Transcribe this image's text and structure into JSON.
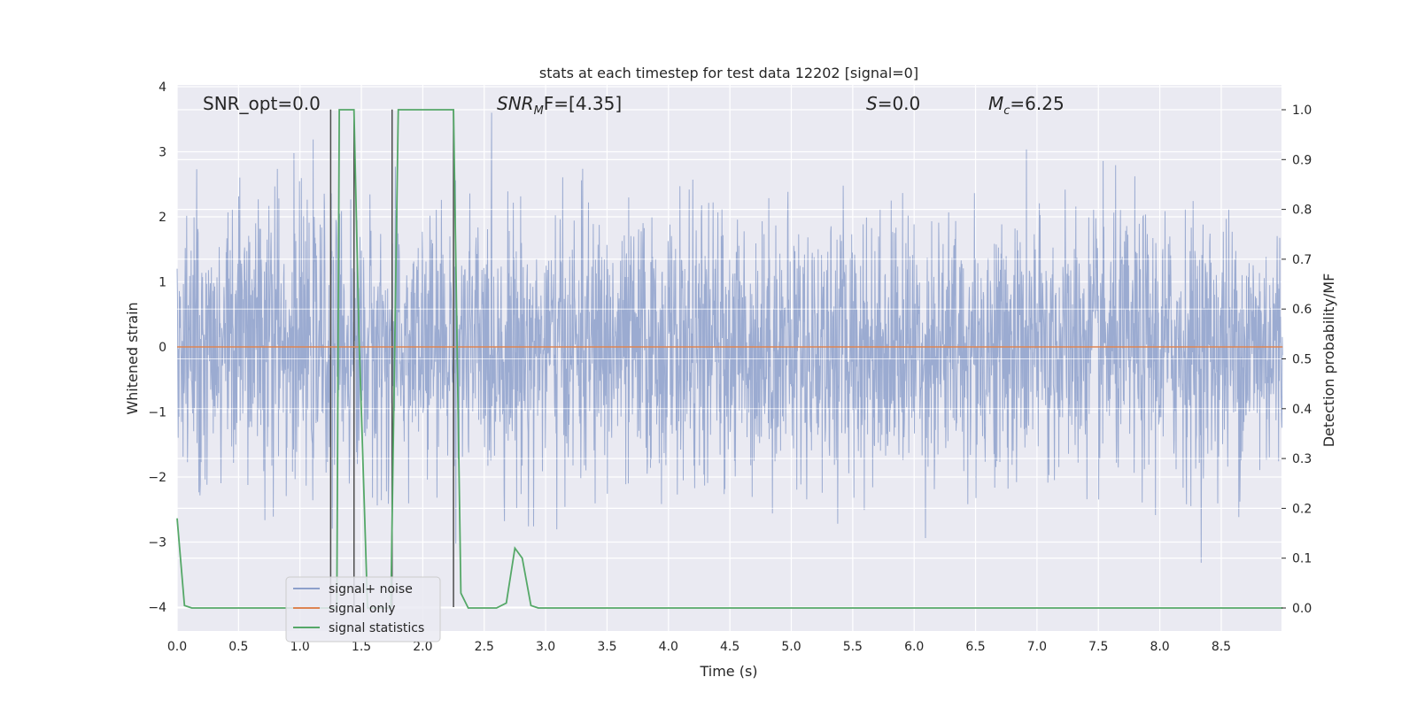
{
  "chart_data": {
    "type": "line",
    "title": "stats at each timestep for test data 12202 [signal=0]",
    "xlabel": "Time (s)",
    "ylabel": "Whitened strain",
    "y2label": "Detection probability/MF",
    "xlim": [
      0.0,
      9.0
    ],
    "ylim": [
      -4.35,
      4.05
    ],
    "y2lim": [
      -0.05,
      1.04
    ],
    "xticks": [
      "0.0",
      "0.5",
      "1.0",
      "1.5",
      "2.0",
      "2.5",
      "3.0",
      "3.5",
      "4.0",
      "4.5",
      "5.0",
      "5.5",
      "6.0",
      "6.5",
      "7.0",
      "7.5",
      "8.0",
      "8.5"
    ],
    "yticks": [
      "4",
      "3",
      "2",
      "1",
      "0",
      "−1",
      "−2",
      "−3",
      "−4"
    ],
    "y2ticks": [
      "1.0",
      "0.9",
      "0.8",
      "0.7",
      "0.6",
      "0.5",
      "0.4",
      "0.3",
      "0.2",
      "0.1",
      "0.0"
    ],
    "grid": true,
    "legend_position": "lower-left",
    "annotations": {
      "snr_opt": "SNR_opt=0.0",
      "snr_mf_main": "SNR",
      "snr_mf_sub": "M",
      "snr_mf_rest": "F=[4.35]",
      "s_main": "S",
      "s_rest": "=0.0",
      "mc_main": "M",
      "mc_sub": "c",
      "mc_rest": "=6.25"
    },
    "series": [
      {
        "name": "signal+ noise",
        "color": "#8da0cb",
        "kind": "noise",
        "noise_std": 1.0,
        "noise_range": [
          -4.0,
          3.6
        ],
        "x_range": [
          0.0,
          9.0
        ]
      },
      {
        "name": "signal only",
        "color": "#dd8452",
        "x": [
          0.0,
          9.0
        ],
        "y": [
          0.0,
          0.0
        ]
      },
      {
        "name": "signal statistics",
        "color": "#55a868",
        "axis": "right",
        "x": [
          0.0,
          0.06,
          0.12,
          0.25,
          1.0,
          1.25,
          1.3,
          1.32,
          1.44,
          1.48,
          1.55,
          1.62,
          1.74,
          1.8,
          2.0,
          2.25,
          2.31,
          2.37,
          2.6,
          2.68,
          2.75,
          2.81,
          2.88,
          2.94,
          9.0
        ],
        "y": [
          0.18,
          0.005,
          0.0,
          0.0,
          0.0,
          0.0,
          0.0,
          1.0,
          1.0,
          0.55,
          0.0,
          0.0,
          0.0,
          1.0,
          1.0,
          1.0,
          0.03,
          0.0,
          0.0,
          0.01,
          0.12,
          0.1,
          0.005,
          0.0,
          0.0
        ]
      }
    ],
    "vertical_lines": [
      1.25,
      1.44,
      1.75,
      2.25
    ],
    "vertical_lines_range": [
      -4.0,
      3.65
    ]
  }
}
